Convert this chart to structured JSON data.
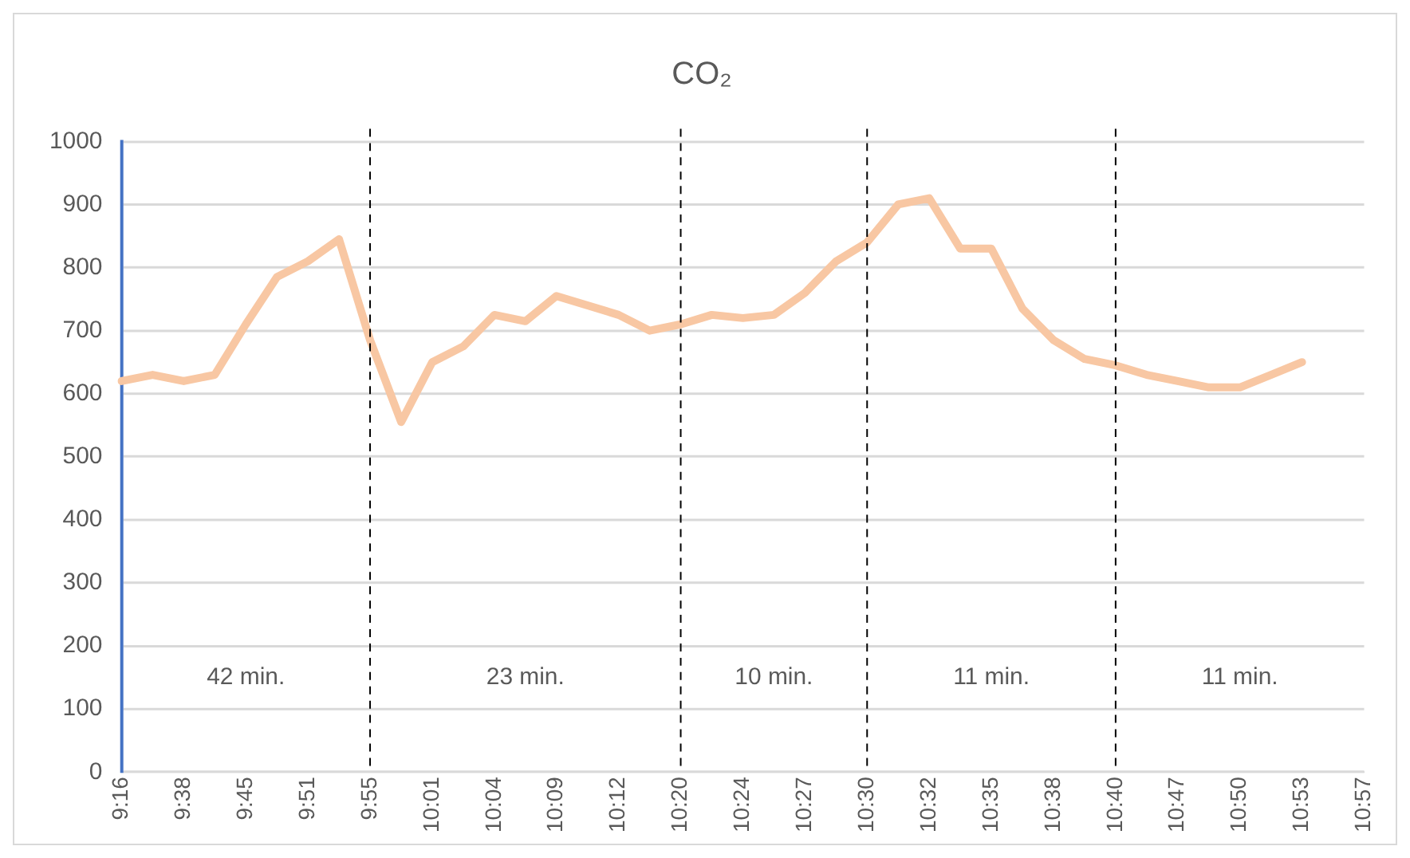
{
  "chart_data": {
    "type": "line",
    "title": "CO₂",
    "categories": [
      "9:16",
      null,
      "9:38",
      null,
      "9:45",
      null,
      "9:51",
      null,
      "9:55",
      null,
      "10:01",
      null,
      "10:04",
      null,
      "10:09",
      null,
      "10:12",
      null,
      "10:20",
      null,
      "10:24",
      null,
      "10:27",
      null,
      "10:30",
      null,
      "10:32",
      null,
      "10:35",
      null,
      "10:38",
      null,
      "10:40",
      null,
      "10:47",
      null,
      "10:50",
      null,
      "10:53",
      null,
      "10:57"
    ],
    "series": [
      {
        "color": "#f8c7a3",
        "values": [
          620,
          630,
          620,
          630,
          710,
          785,
          810,
          845,
          685,
          555,
          650,
          675,
          725,
          715,
          755,
          740,
          725,
          700,
          710,
          725,
          720,
          725,
          760,
          810,
          840,
          900,
          910,
          830,
          830,
          735,
          685,
          655,
          645,
          630,
          620,
          610,
          610,
          630,
          650,
          null,
          null
        ]
      }
    ],
    "ylim": [
      0,
      1000
    ],
    "yticks": [
      0,
      100,
      200,
      300,
      400,
      500,
      600,
      700,
      800,
      900,
      1000
    ],
    "grid": "y",
    "legend": false,
    "marker": "none",
    "line_style": "solid",
    "ref_lines": [
      {
        "axis": "x",
        "value": "9:55",
        "line_style": "dashed",
        "color": "#000000"
      },
      {
        "axis": "x",
        "value": "10:20",
        "line_style": "dashed",
        "color": "#000000"
      },
      {
        "axis": "x",
        "value": "10:30",
        "line_style": "dashed",
        "color": "#000000"
      },
      {
        "axis": "x",
        "value": "10:40",
        "line_style": "dashed",
        "color": "#000000"
      }
    ],
    "annotations": [
      "42 min.",
      "23 min.",
      "10 min.",
      "11 min.",
      "11 min."
    ]
  }
}
